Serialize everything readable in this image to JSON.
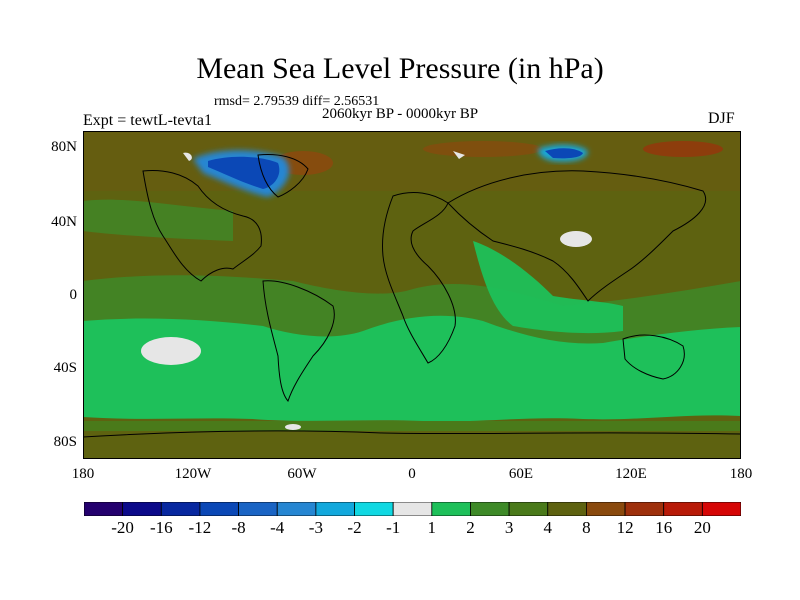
{
  "title": "Mean Sea Level Pressure (in hPa)",
  "stats": "rmsd= 2.79539 diff= 2.56531",
  "subtitle": "2060kyr BP - 0000kyr BP",
  "left_label": "Expt = tewtL-tevta1",
  "right_label": "DJF",
  "lat_labels": [
    "80N",
    "40N",
    "0",
    "40S",
    "80S"
  ],
  "lon_labels": [
    "180",
    "120W",
    "60W",
    "0",
    "60E",
    "120E",
    "180"
  ],
  "colorbar": {
    "colors": [
      "#24006e",
      "#0c0a8a",
      "#0828a0",
      "#0b48b6",
      "#1a64c4",
      "#2686d2",
      "#12a8dc",
      "#10d8e2",
      "#e6e6e6",
      "#1ec05a",
      "#3e8a28",
      "#4a7a1a",
      "#5e6210",
      "#8a4a0e",
      "#9e300c",
      "#b81a08",
      "#d60606"
    ],
    "labels": [
      "-20",
      "-16",
      "-12",
      "-8",
      "-4",
      "-3",
      "-2",
      "-1",
      "1",
      "2",
      "3",
      "4",
      "8",
      "12",
      "16",
      "20"
    ]
  }
}
